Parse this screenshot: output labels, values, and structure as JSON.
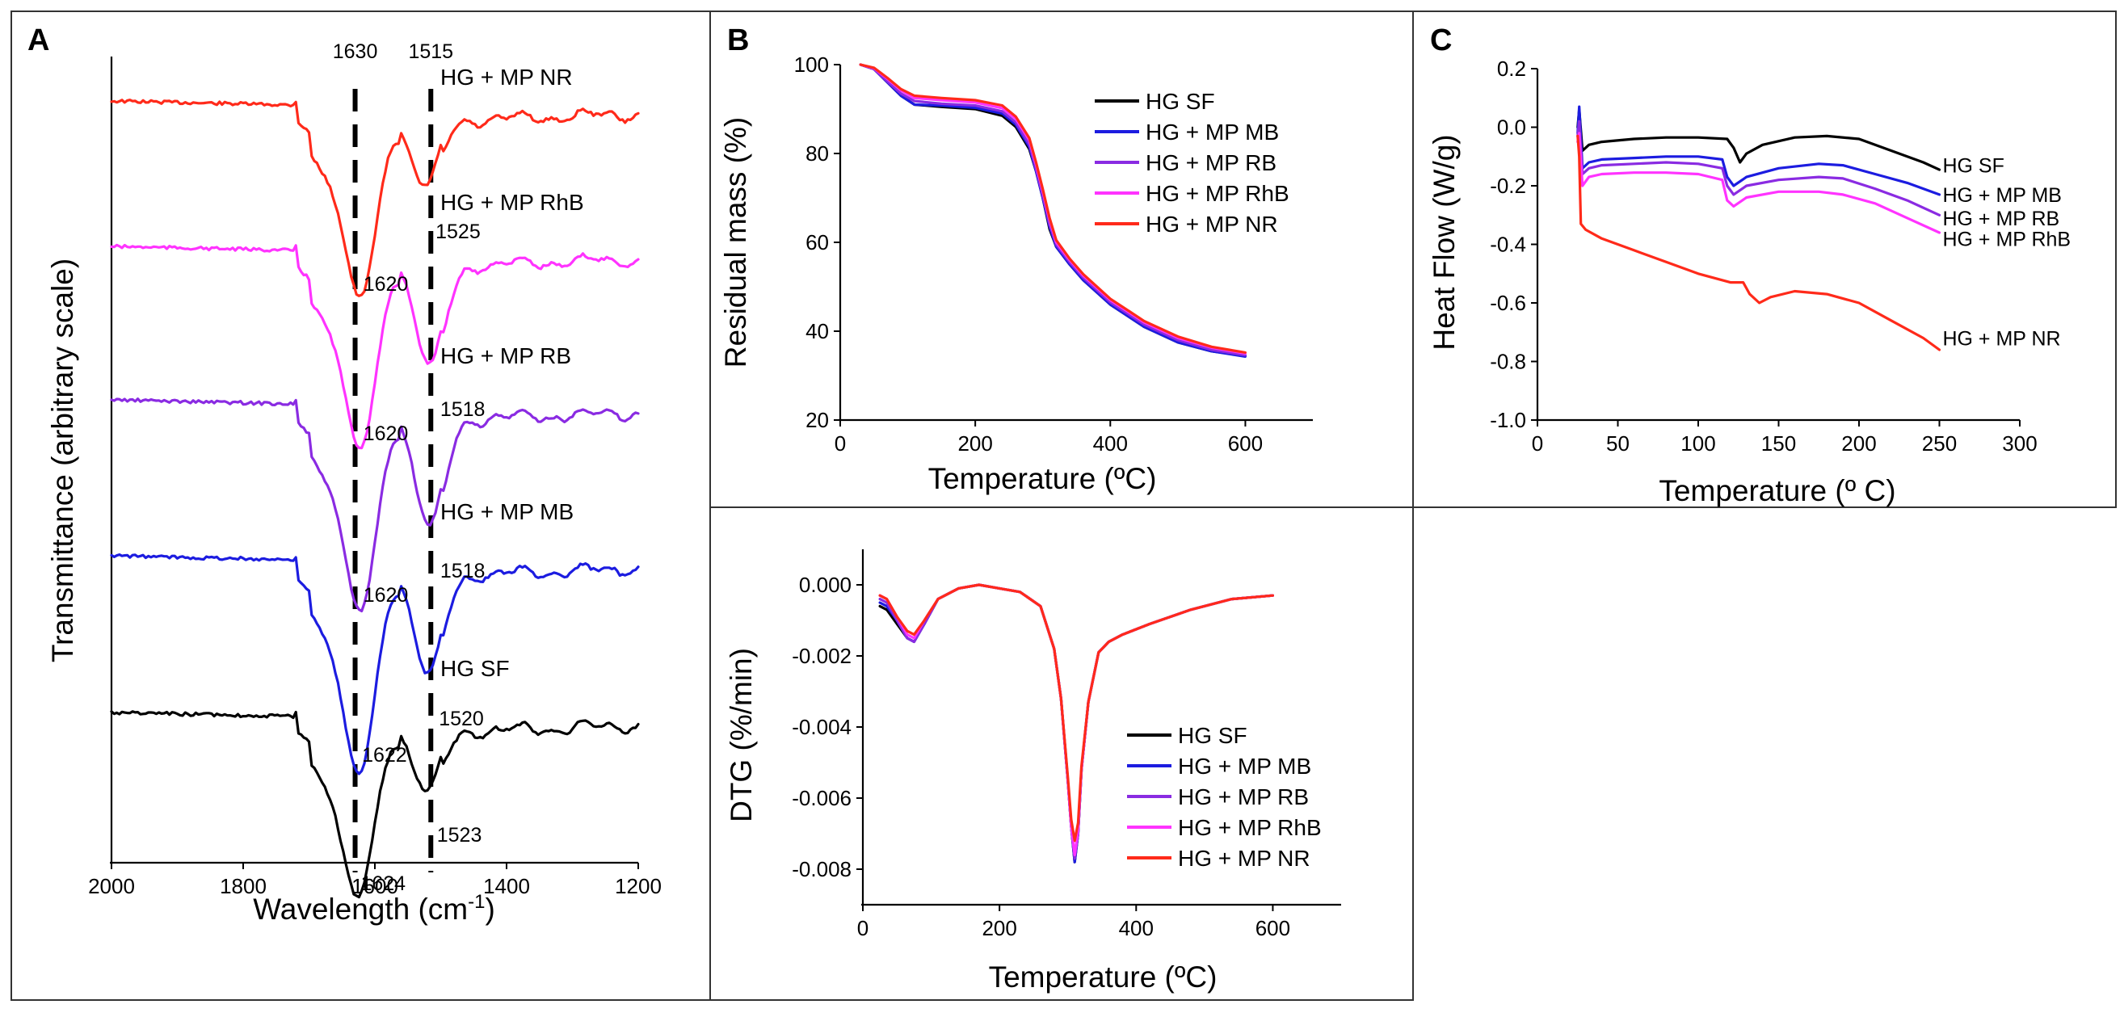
{
  "colors": {
    "HG SF": "#000000",
    "HG + MP MB": "#1c1ce0",
    "HG + MP RB": "#8a2be2",
    "HG + MP RhB": "#ff33ff",
    "HG + MP NR": "#ff2a1a"
  },
  "chart_data": [
    {
      "panel": "A",
      "type": "line",
      "xlabel": "Wavelength (cm",
      "xlabel_sup": "-1",
      "xlabel_end": ")",
      "ylabel": "Transmittance (arbitrary scale)",
      "xlim": [
        2000,
        1200
      ],
      "xticks": [
        "2000",
        "1800",
        "1600",
        "1400",
        "1200"
      ],
      "reference_lines": [
        {
          "x": 1630,
          "label": "1630"
        },
        {
          "x": 1515,
          "label": "1515"
        }
      ],
      "series": [
        {
          "name": "HG + MP NR",
          "label": "HG + MP NR",
          "peaks": [
            {
              "x": 1620,
              "label": "1620"
            },
            {
              "x": 1525,
              "label": "1525"
            }
          ]
        },
        {
          "name": "HG + MP RhB",
          "label": "HG + MP RhB",
          "peaks": [
            {
              "x": 1620,
              "label": "1620"
            },
            {
              "x": 1518,
              "label": "1518"
            }
          ]
        },
        {
          "name": "HG + MP RB",
          "label": "HG + MP RB",
          "peaks": [
            {
              "x": 1620,
              "label": "1620"
            },
            {
              "x": 1518,
              "label": "1518"
            }
          ]
        },
        {
          "name": "HG + MP MB",
          "label": "HG + MP MB",
          "peaks": [
            {
              "x": 1622,
              "label": "1622"
            },
            {
              "x": 1520,
              "label": "1520"
            }
          ]
        },
        {
          "name": "HG SF",
          "label": "HG SF",
          "peaks": [
            {
              "x": 1624,
              "label": "1624"
            },
            {
              "x": 1523,
              "label": "1523"
            }
          ]
        }
      ]
    },
    {
      "panel": "B",
      "type": "line",
      "xlabel": "Temperature (ºC)",
      "ylabel": "Residual mass (%)",
      "xlim": [
        0,
        700
      ],
      "ylim": [
        20,
        100
      ],
      "xticks": [
        "0",
        "200",
        "400",
        "600"
      ],
      "yticks": [
        "20",
        "40",
        "60",
        "80",
        "100"
      ],
      "legend": [
        "HG SF",
        "HG + MP MB",
        "HG + MP RB",
        "HG + MP RhB",
        "HG + MP NR"
      ],
      "legend_position": "top-right",
      "series": [
        {
          "name": "HG SF",
          "x": [
            30,
            50,
            70,
            90,
            110,
            150,
            200,
            240,
            260,
            280,
            290,
            300,
            310,
            320,
            340,
            360,
            400,
            450,
            500,
            550,
            600
          ],
          "y": [
            100,
            99,
            96,
            93,
            91,
            90.5,
            90,
            88.5,
            86,
            81,
            76,
            70,
            63,
            59,
            55,
            51.5,
            46,
            41,
            37.5,
            35.5,
            34.5
          ]
        },
        {
          "name": "HG + MP MB",
          "x": [
            30,
            50,
            70,
            90,
            110,
            150,
            200,
            240,
            260,
            280,
            290,
            300,
            310,
            320,
            340,
            360,
            400,
            450,
            500,
            550,
            600
          ],
          "y": [
            100,
            99,
            96,
            93,
            91,
            90.8,
            90.3,
            89,
            86.5,
            81.5,
            76,
            70,
            63.5,
            59,
            55,
            51.5,
            46,
            41,
            37.5,
            35.5,
            34.3
          ]
        },
        {
          "name": "HG + MP RB",
          "x": [
            30,
            50,
            70,
            90,
            110,
            150,
            200,
            240,
            260,
            280,
            290,
            300,
            310,
            320,
            340,
            360,
            400,
            450,
            500,
            550,
            600
          ],
          "y": [
            100,
            99,
            96.2,
            93.5,
            91.8,
            91.2,
            90.8,
            89.5,
            87,
            82,
            76.5,
            70.5,
            64,
            59.5,
            55.5,
            52,
            46.5,
            41.5,
            38,
            35.8,
            34.6
          ]
        },
        {
          "name": "HG + MP RhB",
          "x": [
            30,
            50,
            70,
            90,
            110,
            150,
            200,
            240,
            260,
            280,
            290,
            300,
            310,
            320,
            340,
            360,
            400,
            450,
            500,
            550,
            600
          ],
          "y": [
            100,
            99.2,
            96.8,
            94.2,
            92.5,
            92,
            91.5,
            90.2,
            87.8,
            83,
            77.5,
            71.5,
            65,
            60,
            56,
            52.5,
            47,
            42,
            38.5,
            36.3,
            35
          ]
        },
        {
          "name": "HG + MP NR",
          "x": [
            30,
            50,
            70,
            90,
            110,
            150,
            200,
            240,
            260,
            280,
            290,
            300,
            310,
            320,
            340,
            360,
            400,
            450,
            500,
            550,
            600
          ],
          "y": [
            100,
            99.3,
            97,
            94.5,
            93,
            92.5,
            92,
            90.8,
            88.3,
            83.5,
            78,
            72,
            65.5,
            60.5,
            56.3,
            52.8,
            47.3,
            42.3,
            38.8,
            36.5,
            35.2
          ]
        }
      ]
    },
    {
      "panel": "B-lower",
      "type": "line",
      "xlabel": "Temperature (ºC)",
      "ylabel": "DTG (%/min)",
      "xlim": [
        0,
        700
      ],
      "ylim": [
        -0.009,
        0.001
      ],
      "xticks": [
        "0",
        "200",
        "400",
        "600"
      ],
      "yticks": [
        "0.000",
        "-0.002",
        "-0.004",
        "-0.006",
        "-0.008"
      ],
      "legend": [
        "HG SF",
        "HG + MP MB",
        "HG + MP RB",
        "HG + MP RhB",
        "HG + MP NR"
      ],
      "legend_position": "bottom-right",
      "series": [
        {
          "name": "HG SF",
          "x": [
            25,
            35,
            50,
            65,
            75,
            90,
            110,
            140,
            170,
            200,
            230,
            260,
            280,
            290,
            300,
            305,
            310,
            315,
            320,
            330,
            345,
            360,
            380,
            420,
            480,
            540,
            600
          ],
          "y": [
            -0.0006,
            -0.0007,
            -0.0011,
            -0.0015,
            -0.0016,
            -0.0011,
            -0.0004,
            -0.0001,
            0,
            -0.0001,
            -0.0002,
            -0.0006,
            -0.0018,
            -0.0032,
            -0.0055,
            -0.0068,
            -0.0078,
            -0.007,
            -0.0052,
            -0.0033,
            -0.0019,
            -0.0016,
            -0.0014,
            -0.0011,
            -0.0007,
            -0.0004,
            -0.0003
          ]
        },
        {
          "name": "HG + MP MB",
          "x": [
            25,
            35,
            50,
            65,
            75,
            90,
            110,
            140,
            170,
            200,
            230,
            260,
            280,
            290,
            300,
            305,
            310,
            315,
            320,
            330,
            345,
            360,
            380,
            420,
            480,
            540,
            600
          ],
          "y": [
            -0.0005,
            -0.0006,
            -0.001,
            -0.0015,
            -0.0016,
            -0.0011,
            -0.0004,
            -0.0001,
            0,
            -0.0001,
            -0.0002,
            -0.0006,
            -0.0018,
            -0.0032,
            -0.0055,
            -0.0068,
            -0.0078,
            -0.007,
            -0.0052,
            -0.0033,
            -0.0019,
            -0.0016,
            -0.0014,
            -0.0011,
            -0.0007,
            -0.0004,
            -0.0003
          ]
        },
        {
          "name": "HG + MP RB",
          "x": [
            25,
            35,
            50,
            65,
            75,
            90,
            110,
            140,
            170,
            200,
            230,
            260,
            280,
            290,
            300,
            305,
            310,
            315,
            320,
            330,
            345,
            360,
            380,
            420,
            480,
            540,
            600
          ],
          "y": [
            -0.0004,
            -0.0005,
            -0.001,
            -0.0015,
            -0.0016,
            -0.0011,
            -0.0004,
            -0.0001,
            0,
            -0.0001,
            -0.0002,
            -0.0006,
            -0.0018,
            -0.0032,
            -0.0055,
            -0.0068,
            -0.0077,
            -0.007,
            -0.0052,
            -0.0033,
            -0.0019,
            -0.0016,
            -0.0014,
            -0.0011,
            -0.0007,
            -0.0004,
            -0.0003
          ]
        },
        {
          "name": "HG + MP RhB",
          "x": [
            25,
            35,
            50,
            65,
            75,
            90,
            110,
            140,
            170,
            200,
            230,
            260,
            280,
            290,
            300,
            305,
            310,
            315,
            320,
            330,
            345,
            360,
            380,
            420,
            480,
            540,
            600
          ],
          "y": [
            -0.0003,
            -0.0004,
            -0.0009,
            -0.0014,
            -0.0015,
            -0.001,
            -0.0004,
            -0.0001,
            0,
            -0.0001,
            -0.0002,
            -0.0006,
            -0.0018,
            -0.0032,
            -0.0055,
            -0.0068,
            -0.0076,
            -0.0069,
            -0.0052,
            -0.0033,
            -0.0019,
            -0.0016,
            -0.0014,
            -0.0011,
            -0.0007,
            -0.0004,
            -0.0003
          ]
        },
        {
          "name": "HG + MP NR",
          "x": [
            25,
            35,
            50,
            65,
            75,
            90,
            110,
            140,
            170,
            200,
            230,
            260,
            280,
            290,
            300,
            305,
            310,
            315,
            320,
            330,
            345,
            360,
            380,
            420,
            480,
            540,
            600
          ],
          "y": [
            -0.0003,
            -0.0004,
            -0.0009,
            -0.0013,
            -0.0014,
            -0.001,
            -0.0004,
            -0.0001,
            0,
            -0.0001,
            -0.0002,
            -0.0006,
            -0.0018,
            -0.0032,
            -0.0054,
            -0.0066,
            -0.0072,
            -0.0067,
            -0.0051,
            -0.0033,
            -0.0019,
            -0.0016,
            -0.0014,
            -0.0011,
            -0.0007,
            -0.0004,
            -0.0003
          ]
        }
      ]
    },
    {
      "panel": "C",
      "type": "line",
      "xlabel": "Temperature (º C)",
      "ylabel": "Heat Flow  (W/g)",
      "xlim": [
        0,
        300
      ],
      "ylim": [
        -1.0,
        0.2
      ],
      "xticks": [
        "0",
        "50",
        "100",
        "150",
        "200",
        "250",
        "300"
      ],
      "yticks": [
        "0.2",
        "0.0",
        "-0.2",
        "-0.4",
        "-0.6",
        "-0.8",
        "-1.0"
      ],
      "series": [
        {
          "name": "HG SF",
          "label": "HG SF",
          "x": [
            25,
            26,
            28,
            32,
            40,
            60,
            80,
            100,
            118,
            122,
            126,
            130,
            140,
            160,
            180,
            200,
            220,
            240,
            250
          ],
          "y": [
            0.0,
            0.06,
            -0.08,
            -0.06,
            -0.05,
            -0.04,
            -0.035,
            -0.035,
            -0.04,
            -0.07,
            -0.12,
            -0.09,
            -0.06,
            -0.035,
            -0.03,
            -0.04,
            -0.08,
            -0.12,
            -0.145
          ]
        },
        {
          "name": "HG + MP MB",
          "label": "HG + MP MB",
          "x": [
            25,
            26,
            28,
            32,
            40,
            60,
            80,
            100,
            115,
            118,
            122,
            130,
            150,
            175,
            190,
            210,
            230,
            250
          ],
          "y": [
            -0.02,
            0.07,
            -0.14,
            -0.12,
            -0.11,
            -0.105,
            -0.1,
            -0.1,
            -0.11,
            -0.17,
            -0.2,
            -0.17,
            -0.14,
            -0.125,
            -0.13,
            -0.16,
            -0.19,
            -0.23
          ]
        },
        {
          "name": "HG + MP RB",
          "label": "HG + MP RB",
          "x": [
            25,
            26,
            28,
            32,
            40,
            60,
            80,
            100,
            115,
            118,
            122,
            130,
            150,
            175,
            190,
            210,
            230,
            250
          ],
          "y": [
            -0.03,
            0.02,
            -0.16,
            -0.14,
            -0.13,
            -0.125,
            -0.12,
            -0.125,
            -0.14,
            -0.2,
            -0.23,
            -0.2,
            -0.18,
            -0.17,
            -0.175,
            -0.21,
            -0.25,
            -0.3
          ]
        },
        {
          "name": "HG + MP RhB",
          "label": "HG + MP RhB",
          "x": [
            25,
            26,
            28,
            32,
            40,
            60,
            80,
            100,
            115,
            118,
            122,
            130,
            150,
            175,
            190,
            210,
            230,
            250
          ],
          "y": [
            -0.05,
            -0.02,
            -0.2,
            -0.17,
            -0.16,
            -0.155,
            -0.155,
            -0.16,
            -0.18,
            -0.25,
            -0.27,
            -0.24,
            -0.22,
            -0.22,
            -0.23,
            -0.26,
            -0.31,
            -0.36
          ]
        },
        {
          "name": "HG + MP NR",
          "label": "HG + MP NR",
          "x": [
            25,
            26,
            27,
            30,
            40,
            60,
            80,
            100,
            120,
            128,
            132,
            138,
            145,
            160,
            180,
            200,
            220,
            240,
            250
          ],
          "y": [
            -0.03,
            -0.1,
            -0.33,
            -0.35,
            -0.38,
            -0.42,
            -0.46,
            -0.5,
            -0.53,
            -0.53,
            -0.57,
            -0.6,
            -0.58,
            -0.56,
            -0.57,
            -0.6,
            -0.66,
            -0.72,
            -0.76
          ]
        }
      ]
    }
  ],
  "panels": {
    "A": "A",
    "B": "B",
    "C": "C"
  }
}
